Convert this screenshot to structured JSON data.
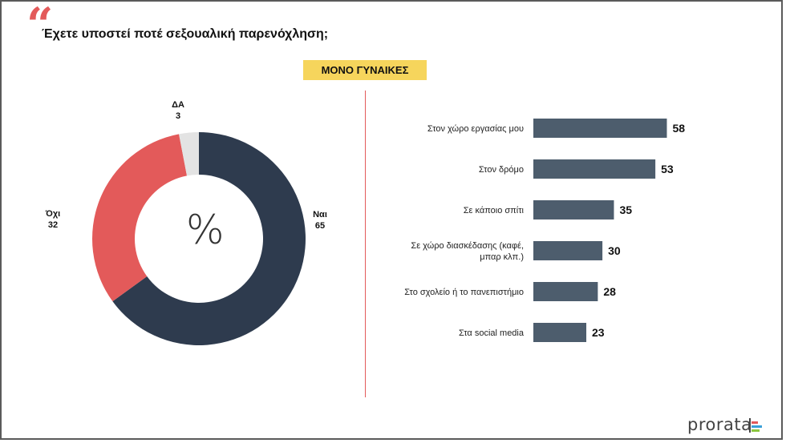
{
  "header": {
    "quote_glyph": "“",
    "question": "Έχετε υποστεί ποτέ σεξουαλική παρενόχληση;",
    "badge": "ΜΟΝΟ ΓΥΝΑΙΚΕΣ"
  },
  "donut_center": "%",
  "brand": "prorata",
  "colors": {
    "yes": "#2e3b4e",
    "no": "#e35a5a",
    "dk": "#e3e3e3",
    "bar": "#4d5d6d",
    "accent": "#f6d55c"
  },
  "chart_data": [
    {
      "type": "pie",
      "labels": [
        "Ναι",
        "Όχι",
        "ΔΑ"
      ],
      "values": [
        65,
        32,
        3
      ],
      "donut": true
    },
    {
      "type": "bar",
      "orientation": "horizontal",
      "categories": [
        "Στον χώρο εργασίας μου",
        "Στον δρόμο",
        "Σε κάποιο σπίτι",
        "Σε χώρο διασκέδασης (καφέ, μπαρ κλπ.)",
        "Στο σχολείο ή το πανεπιστήμιο",
        "Στα social media"
      ],
      "category_lines": [
        [
          "Στον χώρο εργασίας μου"
        ],
        [
          "Στον δρόμο"
        ],
        [
          "Σε κάποιο σπίτι"
        ],
        [
          "Σε χώρο διασκέδασης (καφέ,",
          "μπαρ κλπ.)"
        ],
        [
          "Στο σχολείο ή το πανεπιστήμιο"
        ],
        [
          "Στα social media"
        ]
      ],
      "values": [
        58,
        53,
        35,
        30,
        28,
        23
      ]
    }
  ]
}
